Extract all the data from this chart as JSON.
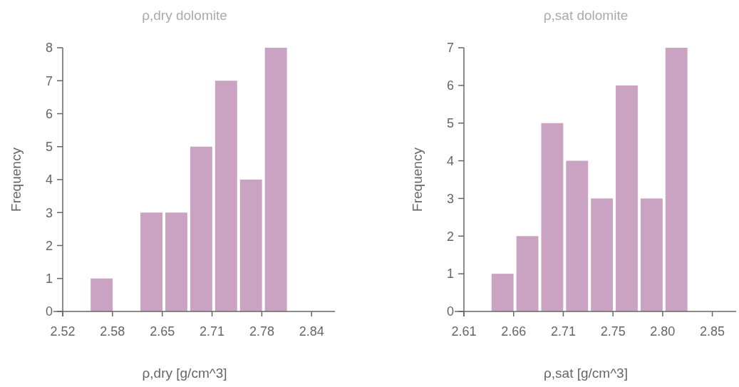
{
  "chart_data": [
    {
      "type": "histogram",
      "title": "ρ,dry dolomite",
      "xlabel": "ρ,dry [g/cm^3]",
      "ylabel": "Frequency",
      "color": "#c9a3c1",
      "bins": [
        2.555,
        2.587,
        2.619,
        2.651,
        2.683,
        2.715,
        2.747,
        2.779,
        2.811
      ],
      "values": [
        1,
        0,
        3,
        3,
        5,
        7,
        4,
        8
      ],
      "xlim": [
        2.52,
        2.87
      ],
      "xticks": [
        {
          "value": 2.52,
          "label": "2.52"
        },
        {
          "value": 2.584,
          "label": "2.58"
        },
        {
          "value": 2.648,
          "label": "2.65"
        },
        {
          "value": 2.712,
          "label": "2.71"
        },
        {
          "value": 2.776,
          "label": "2.78"
        },
        {
          "value": 2.84,
          "label": "2.84"
        }
      ],
      "ylim": [
        0,
        8
      ],
      "yticks": [
        0,
        1,
        2,
        3,
        4,
        5,
        6,
        7,
        8
      ]
    },
    {
      "type": "histogram",
      "title": "ρ,sat dolomite",
      "xlabel": "ρ,sat [g/cm^3]",
      "ylabel": "Frequency",
      "color": "#c9a3c1",
      "bins": [
        2.636,
        2.66,
        2.684,
        2.708,
        2.732,
        2.756,
        2.78,
        2.804,
        2.828
      ],
      "values": [
        1,
        2,
        5,
        4,
        3,
        6,
        3,
        7
      ],
      "xlim": [
        2.61,
        2.873
      ],
      "xticks": [
        {
          "value": 2.61,
          "label": "2.61"
        },
        {
          "value": 2.658,
          "label": "2.66"
        },
        {
          "value": 2.706,
          "label": "2.71"
        },
        {
          "value": 2.754,
          "label": "2.75"
        },
        {
          "value": 2.802,
          "label": "2.80"
        },
        {
          "value": 2.85,
          "label": "2.85"
        }
      ],
      "ylim": [
        0,
        7
      ],
      "yticks": [
        0,
        1,
        2,
        3,
        4,
        5,
        6,
        7
      ]
    }
  ]
}
